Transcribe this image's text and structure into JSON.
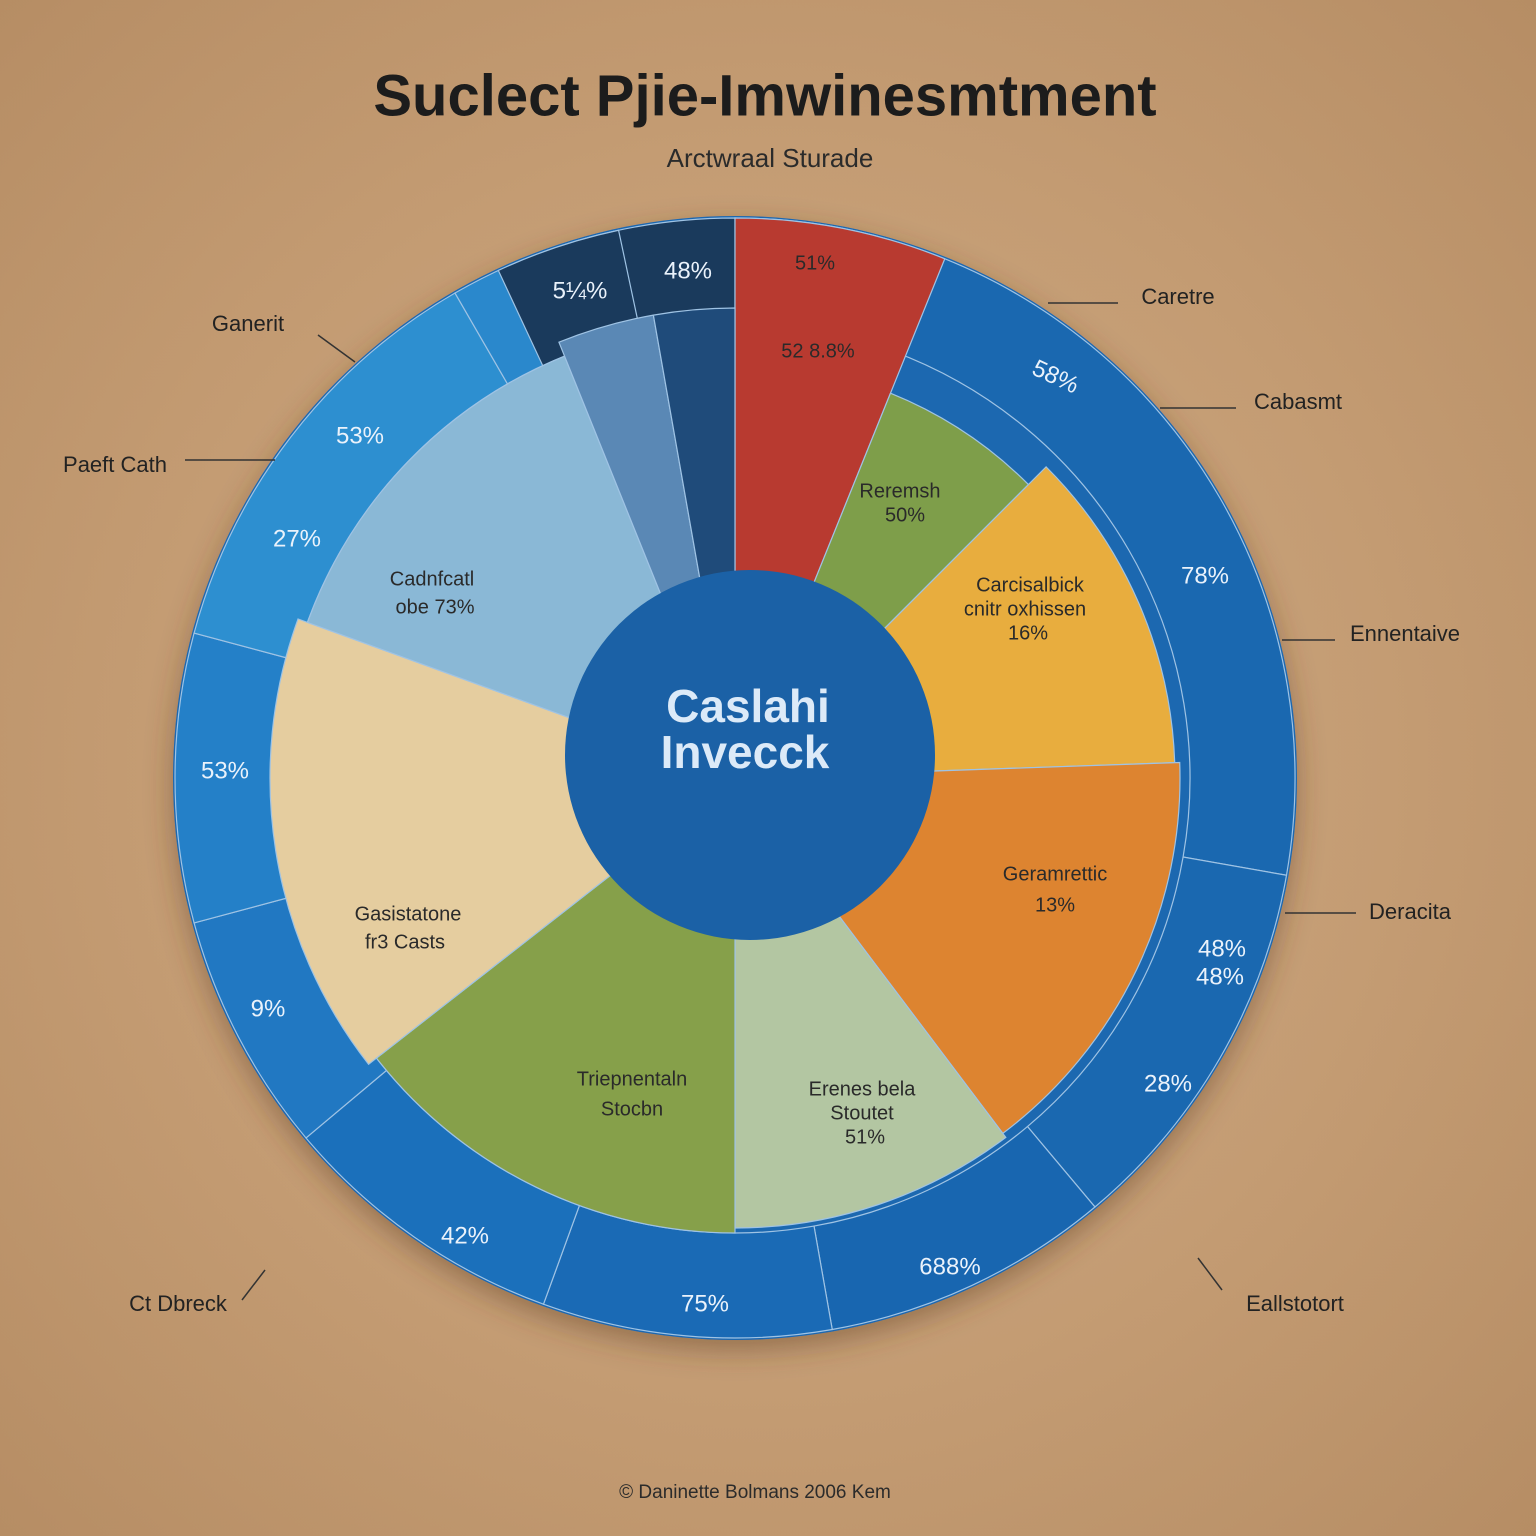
{
  "header": {
    "title": "Suclect Pjie-Imwinesmtment",
    "subtitle": "Arctwraal Sturade"
  },
  "center": {
    "lines": [
      "Caslahi",
      "Invecck"
    ]
  },
  "segments": [
    {
      "lines": [
        "Reremsh",
        "50%"
      ]
    },
    {
      "lines": [
        "Carcisalbick",
        "cnitr oxhissen",
        "16%"
      ]
    },
    {
      "lines": [
        "Geramrettic",
        "13%"
      ]
    },
    {
      "lines": [
        "Erenes bela",
        "Stoutet",
        "51%"
      ]
    },
    {
      "lines": [
        "Triepnentaln",
        "Stocbn"
      ]
    },
    {
      "lines": [
        "Gasistatone",
        "fr3 Casts"
      ]
    },
    {
      "lines": [
        "Cadnfcatl",
        "obe 73%"
      ]
    },
    {
      "lines": [
        "51%",
        "52 8.8%"
      ]
    }
  ],
  "ring_labels": [
    "48%",
    "5¼%",
    "58%",
    "78%",
    "53%",
    "27%",
    "53%",
    "9%",
    "42%",
    "75%",
    "688%",
    "48%",
    "48%",
    "28%"
  ],
  "callouts": [
    "Ganerit",
    "Paeft Cath",
    "Caretre",
    "Cabasmt",
    "Ennentaive",
    "Deracita",
    "Eallstotort",
    "Ct Dbreck"
  ],
  "footer": "© Daninette Bolmans 2006 Kem"
}
